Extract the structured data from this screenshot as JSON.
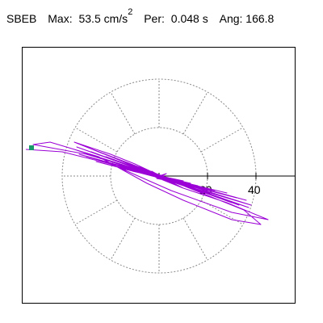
{
  "header": {
    "station": "SBEB",
    "max_label": "Max:",
    "max_value": "53.5 cm/s",
    "max_exp": "2",
    "per_label": "Per:",
    "per_value": "0.048 s",
    "ang_label": "Ang: 166.8"
  },
  "colors": {
    "trace": "#9b00d6",
    "marker": "#1a9a6a",
    "rings": "#8a8a8a",
    "axis": "#000000"
  },
  "chart_data": {
    "type": "scatter",
    "title": "SBEB   Max: 53.5 cm/s2  Per: 0.048 s  Ang: 166.8",
    "xlabel": "",
    "ylabel": "",
    "xticks": [
      "20",
      "40"
    ],
    "ring_radii": [
      20,
      40
    ],
    "spokes": 12,
    "max_amplitude": 53.5,
    "angle_deg": 166.8,
    "series": [
      {
        "x": [
          0,
          3,
          -1,
          4,
          -3,
          6,
          -8,
          10,
          -15,
          18,
          -22,
          25,
          -28,
          30,
          -30,
          33,
          -34,
          37,
          -35,
          38,
          -33,
          36,
          -30,
          32,
          -26,
          28,
          -22,
          23,
          -18,
          19,
          -15,
          16,
          -11,
          13,
          -9,
          10,
          -6,
          7,
          -4,
          5,
          -3,
          4,
          -2,
          3,
          -1,
          2,
          0,
          0,
          0
        ],
        "y": [
          0,
          1,
          -1,
          -2,
          2,
          -3,
          4,
          -5,
          6,
          -7,
          8,
          -9,
          10,
          -11,
          12,
          -12,
          12,
          -13,
          11,
          -12,
          9,
          -10,
          8,
          -9,
          6,
          -7,
          5,
          -6,
          4,
          -5,
          3,
          -4,
          2,
          -3,
          2,
          -2,
          1,
          -2,
          1,
          -1,
          1,
          -1,
          0,
          -1,
          0,
          0,
          0,
          -1,
          0
        ]
      }
    ],
    "grid": true
  }
}
